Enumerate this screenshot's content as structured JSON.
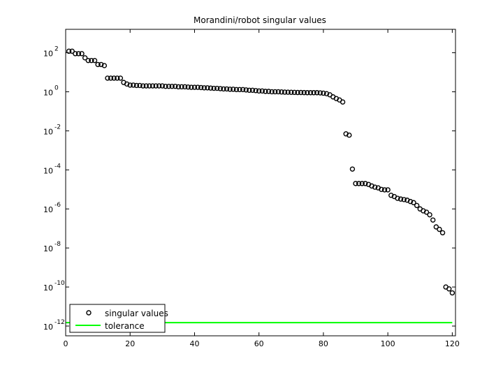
{
  "chart_data": {
    "type": "scatter",
    "title": "Morandini/robot singular values",
    "xlabel": "",
    "ylabel": "",
    "xlim": [
      0,
      121
    ],
    "ylim_log10": [
      -12.5,
      3.2
    ],
    "y_scale": "log",
    "x_ticks": [
      "0",
      "20",
      "40",
      "60",
      "80",
      "100",
      "120"
    ],
    "y_ticks": [
      {
        "base": "10",
        "exp": "2"
      },
      {
        "base": "10",
        "exp": "0"
      },
      {
        "base": "10",
        "exp": "-2"
      },
      {
        "base": "10",
        "exp": "-4"
      },
      {
        "base": "10",
        "exp": "-6"
      },
      {
        "base": "10",
        "exp": "-8"
      },
      {
        "base": "10",
        "exp": "-10"
      },
      {
        "base": "10",
        "exp": "-12"
      }
    ],
    "grid": false,
    "legend_position": "bottom-left",
    "series": [
      {
        "name": "singular values",
        "marker": "circle",
        "color": "#000000",
        "x": [
          1,
          2,
          3,
          4,
          5,
          6,
          7,
          8,
          9,
          10,
          11,
          12,
          13,
          14,
          15,
          16,
          17,
          18,
          19,
          20,
          21,
          22,
          23,
          24,
          25,
          26,
          27,
          28,
          29,
          30,
          31,
          32,
          33,
          34,
          35,
          36,
          37,
          38,
          39,
          40,
          41,
          42,
          43,
          44,
          45,
          46,
          47,
          48,
          49,
          50,
          51,
          52,
          53,
          54,
          55,
          56,
          57,
          58,
          59,
          60,
          61,
          62,
          63,
          64,
          65,
          66,
          67,
          68,
          69,
          70,
          71,
          72,
          73,
          74,
          75,
          76,
          77,
          78,
          79,
          80,
          81,
          82,
          83,
          84,
          85,
          86,
          87,
          88,
          89,
          90,
          91,
          92,
          93,
          94,
          95,
          96,
          97,
          98,
          99,
          100,
          101,
          102,
          103,
          104,
          105,
          106,
          107,
          108,
          109,
          110,
          111,
          112,
          113,
          114,
          115,
          116,
          117,
          118,
          119,
          120
        ],
        "y": [
          120,
          120,
          90,
          90,
          90,
          55,
          40,
          40,
          40,
          25,
          25,
          22,
          5,
          5,
          5,
          5,
          5,
          3,
          2.5,
          2.2,
          2.2,
          2.1,
          2.1,
          2.0,
          2.0,
          2.0,
          2.0,
          2.0,
          2.0,
          2.0,
          1.9,
          1.9,
          1.9,
          1.9,
          1.8,
          1.8,
          1.8,
          1.75,
          1.7,
          1.7,
          1.7,
          1.65,
          1.6,
          1.6,
          1.55,
          1.5,
          1.5,
          1.45,
          1.4,
          1.4,
          1.35,
          1.35,
          1.3,
          1.3,
          1.3,
          1.25,
          1.2,
          1.2,
          1.15,
          1.1,
          1.1,
          1.05,
          1.05,
          1.0,
          1.0,
          1.0,
          0.98,
          0.96,
          0.95,
          0.94,
          0.93,
          0.92,
          0.92,
          0.91,
          0.9,
          0.9,
          0.9,
          0.9,
          0.88,
          0.85,
          0.8,
          0.7,
          0.55,
          0.45,
          0.38,
          0.3,
          0.007,
          0.006,
          0.00011,
          2e-05,
          2e-05,
          2e-05,
          2e-05,
          1.8e-05,
          1.5e-05,
          1.3e-05,
          1.2e-05,
          1e-05,
          9.5e-06,
          9.5e-06,
          5e-06,
          4.3e-06,
          3.5e-06,
          3.2e-06,
          3e-06,
          2.8e-06,
          2.4e-06,
          2.1e-06,
          1.5e-06,
          1e-06,
          8e-07,
          6.8e-07,
          5e-07,
          2.7e-07,
          1.2e-07,
          9e-08,
          6e-08,
          1e-10,
          8e-11,
          5e-11
        ]
      },
      {
        "name": "tolerance",
        "marker": "line",
        "color": "#00ff00",
        "x": [
          1,
          120
        ],
        "y": [
          1.5e-12,
          1.5e-12
        ]
      }
    ]
  }
}
